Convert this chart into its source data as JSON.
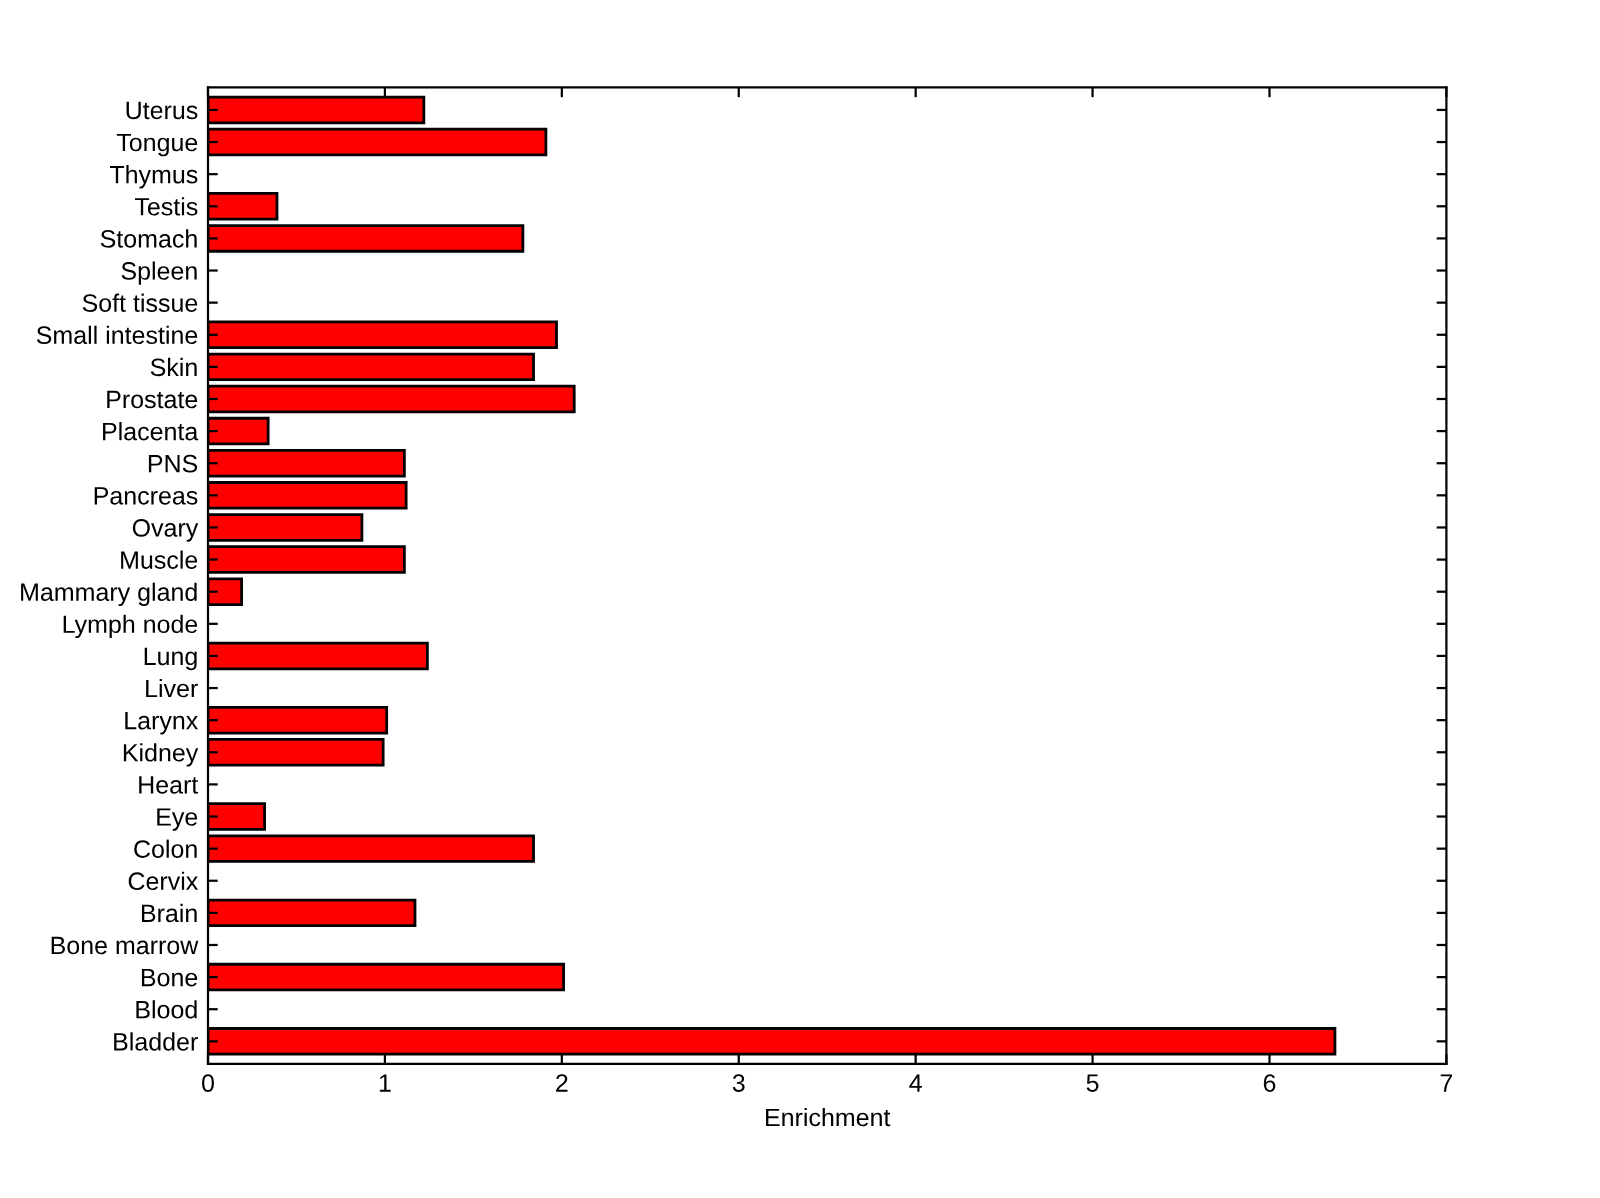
{
  "chart_data": {
    "type": "bar",
    "orientation": "horizontal",
    "xlabel": "Enrichment",
    "categories": [
      "Uterus",
      "Tongue",
      "Thymus",
      "Testis",
      "Stomach",
      "Spleen",
      "Soft tissue",
      "Small intestine",
      "Skin",
      "Prostate",
      "Placenta",
      "PNS",
      "Pancreas",
      "Ovary",
      "Muscle",
      "Mammary gland",
      "Lymph node",
      "Lung",
      "Liver",
      "Larynx",
      "Kidney",
      "Heart",
      "Eye",
      "Colon",
      "Cervix",
      "Brain",
      "Bone marrow",
      "Bone",
      "Blood",
      "Bladder"
    ],
    "values": [
      1.22,
      1.91,
      0,
      0.39,
      1.78,
      0,
      0,
      1.97,
      1.84,
      2.07,
      0.34,
      1.11,
      1.12,
      0.87,
      1.11,
      0.19,
      0,
      1.24,
      0,
      1.01,
      0.99,
      0,
      0.32,
      1.84,
      0,
      1.17,
      0,
      2.01,
      0,
      6.37
    ],
    "color": "#ff0000",
    "xlim": [
      0,
      7
    ],
    "xticks": [
      0,
      1,
      2,
      3,
      4,
      5,
      6,
      7
    ],
    "grid": false
  }
}
